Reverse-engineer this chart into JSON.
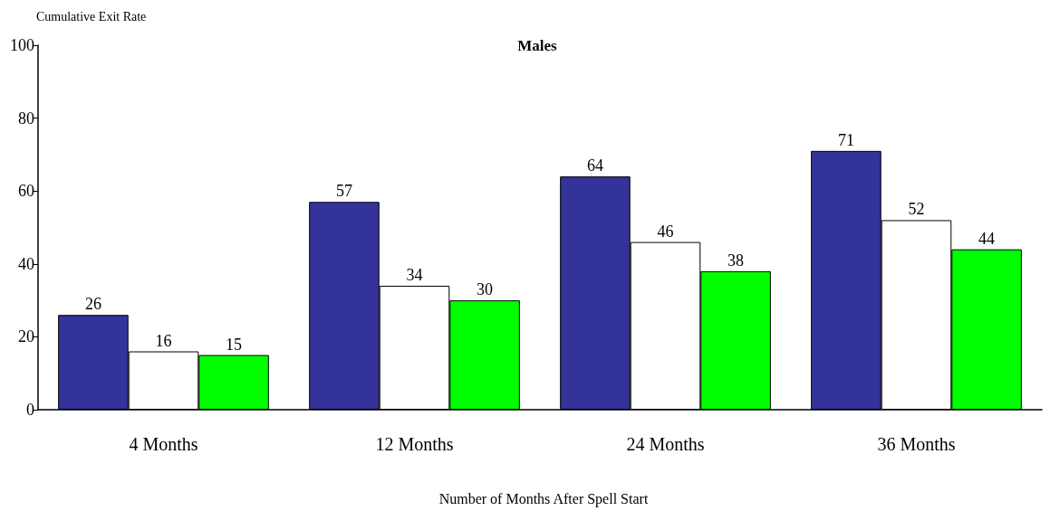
{
  "chart_data": {
    "type": "bar",
    "title": "Males",
    "xlabel": "Number of Months After Spell Start",
    "ylabel": "Cumulative Exit Rate",
    "categories": [
      "4 Months",
      "12 Months",
      "24 Months",
      "36 Months"
    ],
    "series": [
      {
        "color": "#333399",
        "values": [
          26,
          57,
          64,
          71
        ]
      },
      {
        "color": "#ffffff",
        "values": [
          16,
          34,
          46,
          52
        ]
      },
      {
        "color": "#00ff00",
        "values": [
          15,
          30,
          38,
          44
        ]
      }
    ],
    "ylim": [
      0,
      100
    ],
    "yticks": [
      0,
      20,
      40,
      60,
      80,
      100
    ],
    "grid": false,
    "data_labels": true
  }
}
